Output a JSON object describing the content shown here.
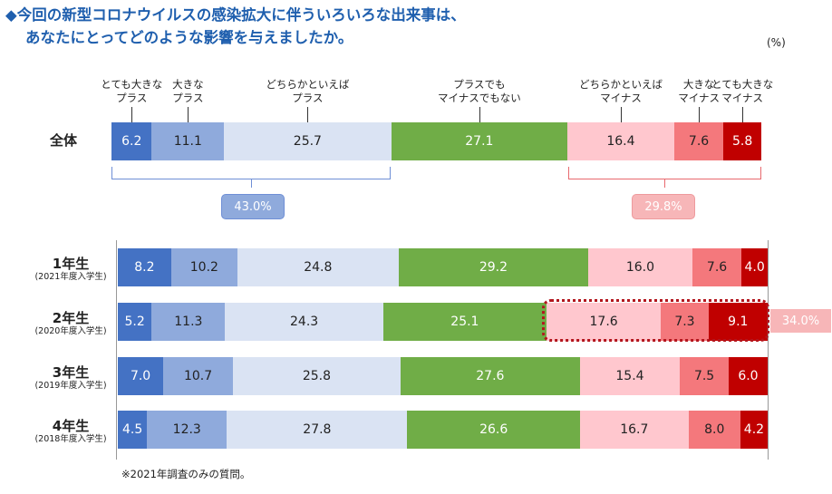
{
  "title": {
    "line1": "◆今回の新型コロナウイルスの感染拡大に伴ういろいろな出来事は、",
    "line2": "あなたにとってどのような影響を与えましたか。"
  },
  "unit": "(%)",
  "categories": [
    {
      "line1": "とても大きな",
      "line2": "プラス"
    },
    {
      "line1": "大きな",
      "line2": "プラス"
    },
    {
      "line1": "どちらかといえば",
      "line2": "プラス"
    },
    {
      "line1": "プラスでも",
      "line2": "マイナスでもない"
    },
    {
      "line1": "どちらかといえば",
      "line2": "マイナス"
    },
    {
      "line1": "大きな",
      "line2": "マイナス"
    },
    {
      "line1": "とても大きな",
      "line2": "マイナス"
    }
  ],
  "colors": [
    "#4472c4",
    "#8faadc",
    "#dae3f3",
    "#70ad47",
    "#ffc7ce",
    "#f4787c",
    "#c00000"
  ],
  "text_colors": [
    "#ffffff",
    "#222222",
    "#222222",
    "#ffffff",
    "#222222",
    "#222222",
    "#ffffff"
  ],
  "summary": {
    "plus_total": "43.0%",
    "minus_total": "29.8%",
    "highlight_2nd": "34.0%"
  },
  "footnote": "※2021年調査のみの質問。",
  "chart_data": {
    "type": "bar",
    "stacked": true,
    "orientation": "horizontal",
    "title": "今回の新型コロナウイルスの感染拡大に伴ういろいろな出来事は、あなたにとってどのような影響を与えましたか。",
    "unit": "%",
    "series_names": [
      "とても大きなプラス",
      "大きなプラス",
      "どちらかといえばプラス",
      "プラスでもマイナスでもない",
      "どちらかといえばマイナス",
      "大きなマイナス",
      "とても大きなマイナス"
    ],
    "rows": [
      {
        "label": "全体",
        "sublabel": "",
        "values": [
          6.2,
          11.1,
          25.7,
          27.1,
          16.4,
          7.6,
          5.8
        ]
      },
      {
        "label": "1年生",
        "sublabel": "(2021年度入学生)",
        "values": [
          8.2,
          10.2,
          24.8,
          29.2,
          16.0,
          7.6,
          4.0
        ]
      },
      {
        "label": "2年生",
        "sublabel": "(2020年度入学生)",
        "values": [
          5.2,
          11.3,
          24.3,
          25.1,
          17.6,
          7.3,
          9.1
        ]
      },
      {
        "label": "3年生",
        "sublabel": "(2019年度入学生)",
        "values": [
          7.0,
          10.7,
          25.8,
          27.6,
          15.4,
          7.5,
          6.0
        ]
      },
      {
        "label": "4年生",
        "sublabel": "(2018年度入学生)",
        "values": [
          4.5,
          12.3,
          27.8,
          26.6,
          16.7,
          8.0,
          4.2
        ]
      }
    ]
  }
}
